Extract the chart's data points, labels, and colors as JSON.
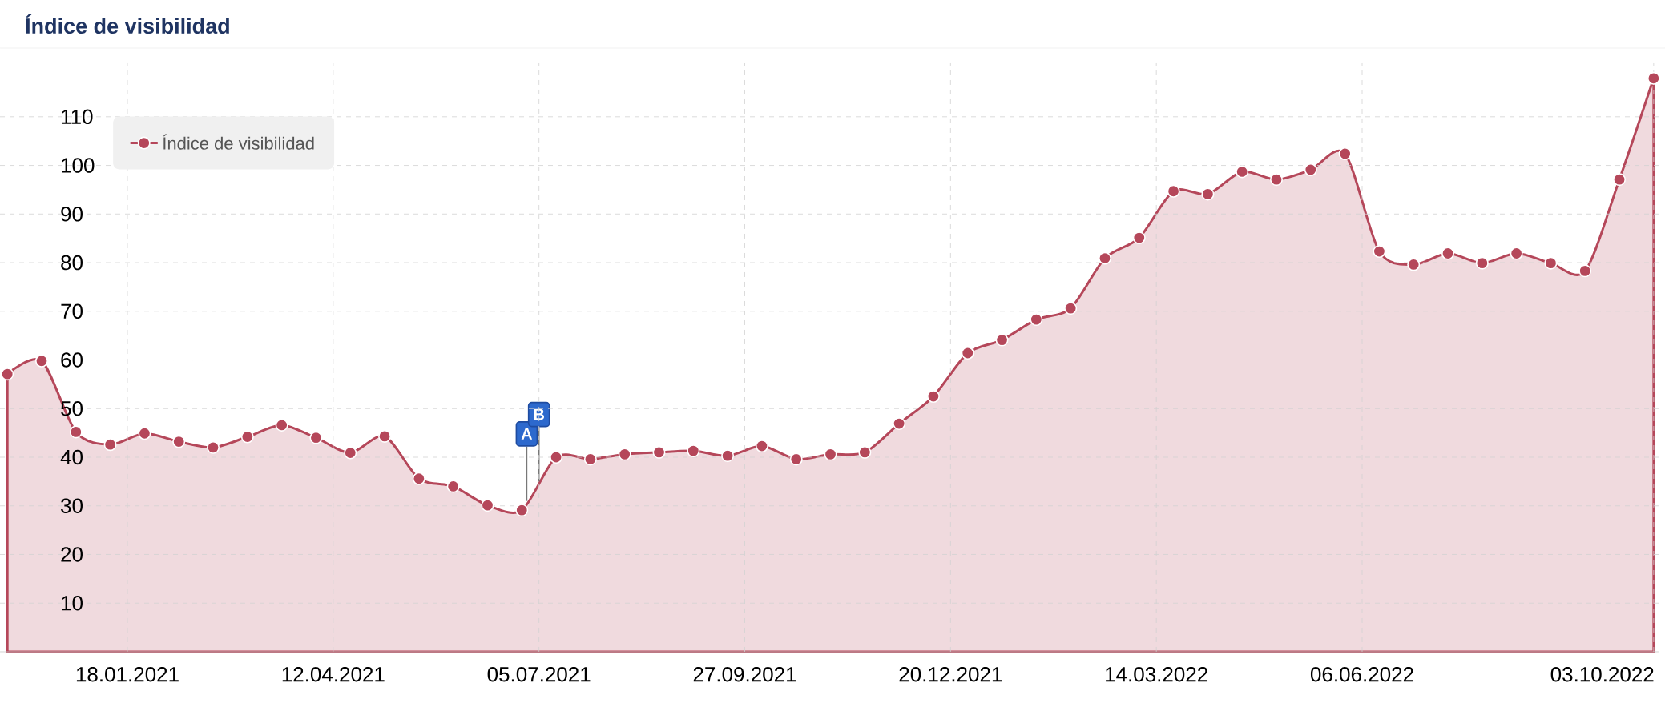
{
  "chart_data": {
    "type": "area",
    "title": "Índice de visibilidad",
    "x": [
      "2020-11-30",
      "2020-12-14",
      "2020-12-28",
      "2021-01-11",
      "2021-01-25",
      "2021-02-08",
      "2021-02-22",
      "2021-03-08",
      "2021-03-22",
      "2021-04-05",
      "2021-04-19",
      "2021-05-03",
      "2021-05-17",
      "2021-05-31",
      "2021-06-14",
      "2021-06-28",
      "2021-07-12",
      "2021-07-26",
      "2021-08-09",
      "2021-08-23",
      "2021-09-06",
      "2021-09-20",
      "2021-10-04",
      "2021-10-18",
      "2021-11-01",
      "2021-11-15",
      "2021-11-29",
      "2021-12-13",
      "2021-12-27",
      "2022-01-10",
      "2022-01-24",
      "2022-02-07",
      "2022-02-21",
      "2022-03-07",
      "2022-03-21",
      "2022-04-04",
      "2022-04-18",
      "2022-05-02",
      "2022-05-16",
      "2022-05-30",
      "2022-06-13",
      "2022-06-27",
      "2022-07-11",
      "2022-07-25",
      "2022-08-08",
      "2022-08-22",
      "2022-09-05",
      "2022-09-19",
      "2022-10-03"
    ],
    "series": [
      {
        "name": "Índice de visibilidad",
        "color": "#b5475a",
        "values": [
          57.1,
          59.8,
          45.2,
          42.6,
          44.9,
          43.2,
          42.0,
          44.2,
          46.6,
          44.0,
          40.9,
          44.3,
          35.6,
          34.0,
          30.1,
          29.1,
          40.0,
          39.6,
          40.6,
          41.0,
          41.3,
          40.3,
          42.3,
          39.6,
          40.6,
          41.0,
          46.9,
          52.5,
          61.4,
          64.1,
          68.3,
          70.6,
          80.9,
          85.1,
          94.7,
          94.1,
          98.7,
          97.1,
          99.1,
          102.4,
          82.3,
          79.6,
          81.9,
          79.9,
          81.9,
          79.9,
          78.3,
          97.1,
          117.9
        ]
      }
    ],
    "xlim": [
      "2020-11-27",
      "2022-10-05"
    ],
    "xticks": [
      {
        "value": "2021-01-18",
        "label": "18.01.2021"
      },
      {
        "value": "2021-04-12",
        "label": "12.04.2021"
      },
      {
        "value": "2021-07-05",
        "label": "05.07.2021"
      },
      {
        "value": "2021-09-27",
        "label": "27.09.2021"
      },
      {
        "value": "2021-12-20",
        "label": "20.12.2021"
      },
      {
        "value": "2022-03-14",
        "label": "14.03.2022"
      },
      {
        "value": "2022-06-06",
        "label": "06.06.2022"
      },
      {
        "value": "2022-10-03",
        "label": "03.10.2022"
      }
    ],
    "ylim": [
      0,
      121
    ],
    "yticks": [
      10,
      20,
      30,
      40,
      50,
      60,
      70,
      80,
      90,
      100,
      110
    ],
    "annotations": [
      {
        "text": "A",
        "x": "2021-06-30",
        "y": 31
      },
      {
        "text": "B",
        "x": "2021-07-05",
        "y": 35
      }
    ],
    "grid": true,
    "legend": "top left",
    "marker": "circle",
    "line_style": "solid"
  }
}
